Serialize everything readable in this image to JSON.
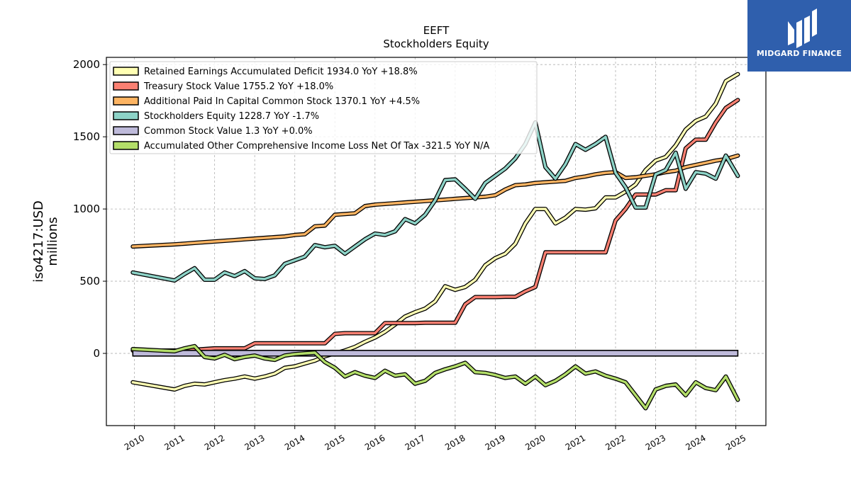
{
  "chart_data": {
    "type": "line",
    "title": "EEFT",
    "subtitle": "Stockholders  Equity",
    "ylabel_line1": "iso4217:USD",
    "ylabel_line2": "millions",
    "xlabel": "",
    "ylim": [
      -500,
      2050
    ],
    "xlim": [
      2009.3,
      2025.75
    ],
    "yticks": [
      0,
      500,
      1000,
      1500,
      2000
    ],
    "yticklabels": [
      "0",
      "500",
      "1000",
      "1500",
      "2000"
    ],
    "xticks": [
      2010,
      2011,
      2012,
      2013,
      2014,
      2015,
      2016,
      2017,
      2018,
      2019,
      2020,
      2021,
      2022,
      2023,
      2024,
      2025
    ],
    "xticklabels": [
      "2010",
      "2011",
      "2012",
      "2013",
      "2014",
      "2015",
      "2016",
      "2017",
      "2018",
      "2019",
      "2020",
      "2021",
      "2022",
      "2023",
      "2024",
      "2025"
    ],
    "grid": true,
    "legend_position": "top-left",
    "series": [
      {
        "name": "Retained Earnings Accumulated Deficit  1934.0 YoY +18.8%",
        "color": "#ffffb3",
        "x": [
          2009.96,
          2011.0,
          2011.25,
          2011.5,
          2011.75,
          2012.0,
          2012.25,
          2012.5,
          2012.75,
          2013.0,
          2013.25,
          2013.5,
          2013.75,
          2014.0,
          2014.25,
          2014.5,
          2014.75,
          2015.0,
          2015.25,
          2015.5,
          2015.75,
          2016.0,
          2016.25,
          2016.5,
          2016.75,
          2017.0,
          2017.25,
          2017.5,
          2017.75,
          2018.0,
          2018.25,
          2018.5,
          2018.75,
          2019.0,
          2019.25,
          2019.5,
          2019.75,
          2020.0,
          2020.25,
          2020.5,
          2020.75,
          2021.0,
          2021.25,
          2021.5,
          2021.75,
          2022.0,
          2022.25,
          2022.5,
          2022.75,
          2023.0,
          2023.25,
          2023.5,
          2023.75,
          2024.0,
          2024.25,
          2024.5,
          2024.75,
          2025.05
        ],
        "values": [
          -200,
          -250,
          -225,
          -210,
          -215,
          -200,
          -185,
          -175,
          -160,
          -175,
          -160,
          -140,
          -100,
          -90,
          -70,
          -50,
          -20,
          0,
          20,
          45,
          80,
          110,
          150,
          200,
          255,
          285,
          310,
          360,
          465,
          440,
          460,
          510,
          610,
          660,
          690,
          760,
          900,
          1000,
          1000,
          900,
          940,
          1000,
          995,
          1005,
          1080,
          1080,
          1120,
          1170,
          1270,
          1335,
          1360,
          1440,
          1550,
          1610,
          1640,
          1730,
          1885,
          1934
        ]
      },
      {
        "name": "Treasury Stock Value  1755.2 YoY +18.0%",
        "color": "#fb8072",
        "x": [
          2009.96,
          2011.0,
          2011.25,
          2011.5,
          2011.75,
          2012.0,
          2012.25,
          2012.5,
          2012.75,
          2013.0,
          2013.25,
          2013.5,
          2013.75,
          2014.0,
          2014.25,
          2014.5,
          2014.75,
          2015.0,
          2015.25,
          2015.5,
          2015.75,
          2016.0,
          2016.25,
          2016.5,
          2016.75,
          2017.0,
          2017.25,
          2017.5,
          2017.75,
          2018.0,
          2018.25,
          2018.5,
          2018.75,
          2019.0,
          2019.25,
          2019.5,
          2019.75,
          2020.0,
          2020.25,
          2020.5,
          2020.75,
          2021.0,
          2021.25,
          2021.5,
          2021.75,
          2022.0,
          2022.25,
          2022.5,
          2022.75,
          2023.0,
          2023.25,
          2023.5,
          2023.75,
          2024.0,
          2024.25,
          2024.5,
          2024.75,
          2025.05
        ],
        "values": [
          20,
          20,
          20,
          25,
          30,
          35,
          35,
          35,
          35,
          70,
          70,
          70,
          70,
          70,
          70,
          70,
          70,
          135,
          140,
          140,
          140,
          140,
          210,
          210,
          210,
          210,
          212,
          212,
          212,
          212,
          340,
          390,
          390,
          390,
          392,
          392,
          430,
          460,
          700,
          700,
          700,
          700,
          700,
          700,
          700,
          920,
          1000,
          1100,
          1100,
          1100,
          1130,
          1130,
          1420,
          1480,
          1480,
          1600,
          1700,
          1755
        ]
      },
      {
        "name": "Additional Paid In Capital Common Stock  1370.1 YoY +4.5%",
        "color": "#fdb462",
        "x": [
          2009.96,
          2011.0,
          2011.25,
          2011.5,
          2011.75,
          2012.0,
          2012.25,
          2012.5,
          2012.75,
          2013.0,
          2013.25,
          2013.5,
          2013.75,
          2014.0,
          2014.25,
          2014.5,
          2014.75,
          2015.0,
          2015.25,
          2015.5,
          2015.75,
          2016.0,
          2016.25,
          2016.5,
          2016.75,
          2017.0,
          2017.25,
          2017.5,
          2017.75,
          2018.0,
          2018.25,
          2018.5,
          2018.75,
          2019.0,
          2019.25,
          2019.5,
          2019.75,
          2020.0,
          2020.25,
          2020.5,
          2020.75,
          2021.0,
          2021.25,
          2021.5,
          2021.75,
          2022.0,
          2022.25,
          2022.5,
          2022.75,
          2023.0,
          2023.25,
          2023.5,
          2023.75,
          2024.0,
          2024.25,
          2024.5,
          2024.75,
          2025.05
        ],
        "values": [
          740,
          755,
          760,
          765,
          770,
          775,
          780,
          785,
          790,
          795,
          800,
          805,
          810,
          820,
          825,
          880,
          885,
          960,
          965,
          970,
          1020,
          1030,
          1035,
          1040,
          1045,
          1050,
          1055,
          1060,
          1065,
          1070,
          1075,
          1080,
          1085,
          1095,
          1135,
          1165,
          1170,
          1180,
          1185,
          1190,
          1195,
          1215,
          1225,
          1240,
          1250,
          1255,
          1215,
          1220,
          1230,
          1240,
          1255,
          1265,
          1290,
          1305,
          1320,
          1335,
          1345,
          1370
        ]
      },
      {
        "name": "Stockholders Equity  1228.7 YoY -1.7%",
        "color": "#8dd3c7",
        "x": [
          2009.96,
          2011.0,
          2011.25,
          2011.5,
          2011.75,
          2012.0,
          2012.25,
          2012.5,
          2012.75,
          2013.0,
          2013.25,
          2013.5,
          2013.75,
          2014.0,
          2014.25,
          2014.5,
          2014.75,
          2015.0,
          2015.25,
          2015.5,
          2015.75,
          2016.0,
          2016.25,
          2016.5,
          2016.75,
          2017.0,
          2017.25,
          2017.5,
          2017.75,
          2018.0,
          2018.25,
          2018.5,
          2018.75,
          2019.0,
          2019.25,
          2019.5,
          2019.75,
          2020.0,
          2020.25,
          2020.5,
          2020.75,
          2021.0,
          2021.25,
          2021.5,
          2021.75,
          2022.0,
          2022.25,
          2022.5,
          2022.75,
          2023.0,
          2023.25,
          2023.5,
          2023.75,
          2024.0,
          2024.25,
          2024.5,
          2024.75,
          2025.05
        ],
        "values": [
          560,
          505,
          550,
          590,
          510,
          510,
          560,
          535,
          570,
          520,
          515,
          540,
          620,
          645,
          670,
          750,
          735,
          745,
          690,
          740,
          790,
          830,
          820,
          845,
          930,
          900,
          960,
          1060,
          1200,
          1205,
          1140,
          1070,
          1180,
          1230,
          1280,
          1350,
          1450,
          1600,
          1290,
          1210,
          1310,
          1450,
          1410,
          1450,
          1500,
          1250,
          1150,
          1010,
          1010,
          1240,
          1270,
          1390,
          1140,
          1255,
          1245,
          1210,
          1370,
          1229
        ]
      },
      {
        "name": "Common Stock Value  1.3 YoY +0.0%",
        "color": "#bebada",
        "x": [
          2009.96,
          2025.05
        ],
        "values": [
          1.3,
          1.3
        ]
      },
      {
        "name": "Accumulated Other Comprehensive Income Loss Net Of Tax  -321.5 YoY N/A",
        "color": "#b3de69",
        "x": [
          2009.96,
          2011.0,
          2011.25,
          2011.5,
          2011.75,
          2012.0,
          2012.25,
          2012.5,
          2012.75,
          2013.0,
          2013.25,
          2013.5,
          2013.75,
          2014.0,
          2014.25,
          2014.5,
          2014.75,
          2015.0,
          2015.25,
          2015.5,
          2015.75,
          2016.0,
          2016.25,
          2016.5,
          2016.75,
          2017.0,
          2017.25,
          2017.5,
          2017.75,
          2018.0,
          2018.25,
          2018.5,
          2018.75,
          2019.0,
          2019.25,
          2019.5,
          2019.75,
          2020.0,
          2020.25,
          2020.5,
          2020.75,
          2021.0,
          2021.25,
          2021.5,
          2021.75,
          2022.0,
          2022.25,
          2022.5,
          2022.75,
          2023.0,
          2023.25,
          2023.5,
          2023.75,
          2024.0,
          2024.25,
          2024.5,
          2024.75,
          2025.05
        ],
        "values": [
          30,
          15,
          35,
          50,
          -25,
          -35,
          -10,
          -40,
          -25,
          -15,
          -35,
          -45,
          -15,
          -5,
          0,
          5,
          -60,
          -100,
          -160,
          -130,
          -155,
          -170,
          -120,
          -155,
          -145,
          -210,
          -190,
          -135,
          -110,
          -90,
          -65,
          -130,
          -135,
          -150,
          -170,
          -160,
          -210,
          -160,
          -220,
          -190,
          -145,
          -90,
          -140,
          -125,
          -155,
          -175,
          -200,
          -290,
          -380,
          -250,
          -225,
          -215,
          -290,
          -200,
          -240,
          -255,
          -160,
          -321.5
        ]
      }
    ]
  },
  "logo": {
    "text": "MIDGARD FINANCE",
    "bg": "#2f5fad"
  }
}
